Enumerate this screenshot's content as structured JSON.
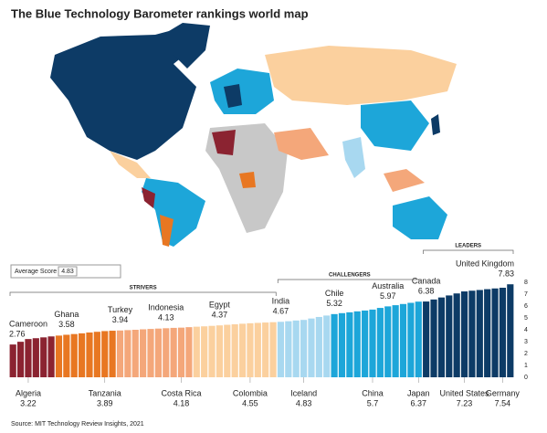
{
  "chart_data": {
    "type": "bar",
    "title": "The Blue Technology Barometer rankings world map",
    "source": "Source: MIT Technology Review Insights, 2021",
    "average_label": "Average Score",
    "average": 4.83,
    "group_labels": [
      "STRIVERS",
      "CHALLENGERS",
      "LEADERS"
    ],
    "categories": [
      "Cameroon",
      null,
      "Algeria",
      null,
      null,
      null,
      null,
      "Ghana",
      null,
      null,
      null,
      null,
      "Tanzania",
      null,
      "Turkey",
      null,
      null,
      null,
      null,
      null,
      "Indonesia",
      null,
      "Costa Rica",
      null,
      null,
      null,
      null,
      "Egypt",
      null,
      null,
      null,
      "Colombia",
      null,
      null,
      null,
      "India",
      null,
      null,
      "Iceland",
      null,
      null,
      null,
      "Chile",
      null,
      null,
      null,
      null,
      "China",
      null,
      "Australia",
      null,
      null,
      null,
      "Japan",
      "Canada",
      null,
      null,
      null,
      null,
      "United States",
      null,
      null,
      null,
      null,
      "Germany",
      "United Kingdom"
    ],
    "values": [
      2.76,
      2.99,
      3.22,
      3.29,
      3.36,
      3.44,
      3.51,
      3.58,
      3.64,
      3.7,
      3.77,
      3.83,
      3.89,
      3.92,
      3.94,
      3.97,
      4.0,
      4.04,
      4.07,
      4.1,
      4.13,
      4.16,
      4.18,
      4.22,
      4.26,
      4.29,
      4.33,
      4.37,
      4.42,
      4.46,
      4.51,
      4.55,
      4.58,
      4.61,
      4.64,
      4.67,
      4.72,
      4.78,
      4.83,
      4.95,
      5.08,
      5.2,
      5.32,
      5.4,
      5.47,
      5.55,
      5.62,
      5.7,
      5.84,
      5.97,
      6.07,
      6.17,
      6.27,
      6.37,
      6.38,
      6.55,
      6.72,
      6.89,
      7.06,
      7.23,
      7.29,
      7.35,
      7.42,
      7.48,
      7.54,
      7.83
    ],
    "tier_colors": [
      "#8b2331",
      "#e87722",
      "#f4a77a",
      "#fbd09e",
      "#a8d8f0",
      "#1da6d9",
      "#0d3b66"
    ],
    "ylim": [
      0,
      8
    ],
    "yticks": [
      0,
      1,
      2,
      3,
      4,
      5,
      6,
      7,
      8
    ]
  }
}
